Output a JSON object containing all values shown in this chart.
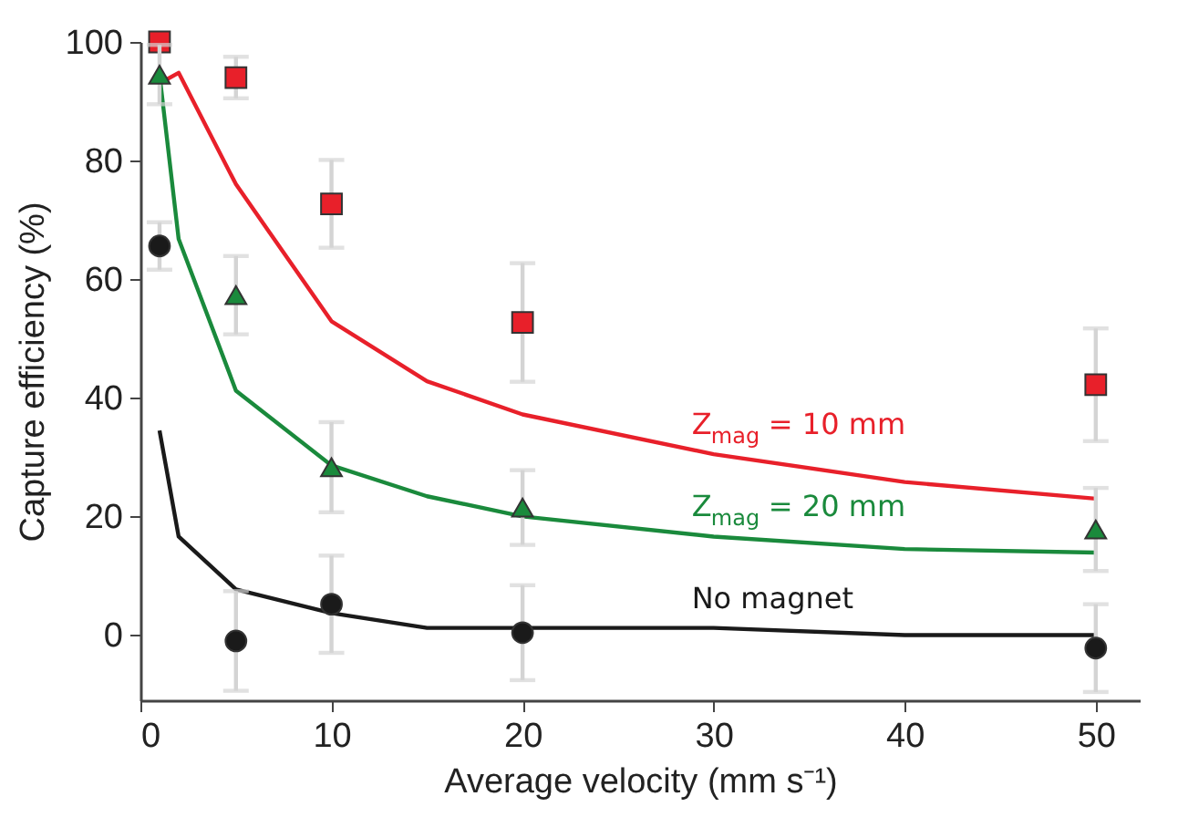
{
  "chart_data": {
    "type": "line",
    "xlabel": "Average velocity (mm s⁻¹)",
    "ylabel": "Capture efficiency (%)",
    "xlim": [
      0,
      52.3
    ],
    "xticks": [
      0,
      10,
      20,
      30,
      40,
      50
    ],
    "ylim": [
      -11,
      100
    ],
    "yticks": [
      0,
      20,
      40,
      60,
      80,
      100
    ],
    "grid": false,
    "line_style": "solid",
    "series": [
      {
        "name": "Z$_{mag}$ = 10 mm",
        "color": "#e8202a",
        "x": [
          1,
          2,
          5,
          10,
          15,
          20,
          30,
          40,
          50
        ],
        "values": [
          93,
          94.8,
          76,
          52.9,
          42.8,
          37.2,
          30.5,
          25.8,
          23
        ]
      },
      {
        "name": "Z$_{mag}$ = 20 mm",
        "color": "#1a8a3c",
        "x": [
          1,
          2,
          5,
          10,
          15,
          20,
          30,
          40,
          50
        ],
        "values": [
          94.5,
          66.8,
          41.2,
          28.6,
          23.4,
          20,
          16.6,
          14.5,
          13.9
        ]
      },
      {
        "name": "No magnet",
        "color": "#1a1a1a",
        "x": [
          1,
          2,
          5,
          10,
          15,
          20,
          30,
          40,
          50
        ],
        "values": [
          34.5,
          16.6,
          7.7,
          3.7,
          1.2,
          1.2,
          1.2,
          0,
          0
        ]
      },
      {
        "type": "scatter",
        "marker": "square",
        "color": "#e8202a",
        "x": [
          1,
          5,
          10,
          20,
          50
        ],
        "values": [
          100,
          94,
          72.7,
          52.7,
          42.2
        ],
        "errors": [
          null,
          3.5,
          7.4,
          10,
          9.5
        ]
      },
      {
        "type": "scatter",
        "marker": "triangle",
        "color": "#1a8a3c",
        "x": [
          1,
          5,
          10,
          20,
          50
        ],
        "values": [
          94.5,
          57.3,
          28.3,
          21.5,
          17.8
        ],
        "errors": [
          5,
          6.6,
          7.6,
          6.3,
          7
        ]
      },
      {
        "type": "scatter",
        "marker": "circle",
        "color": "#1a1a1a",
        "x": [
          1,
          5,
          10,
          20,
          50
        ],
        "values": [
          65.6,
          -1,
          5.2,
          0.4,
          -2.2
        ],
        "errors": [
          4,
          8.4,
          8.2,
          8,
          7.4
        ]
      }
    ]
  }
}
